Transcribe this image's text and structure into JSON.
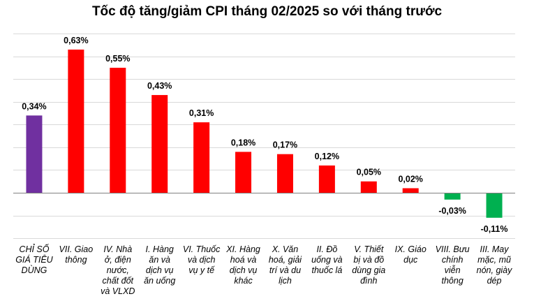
{
  "chart_data": {
    "type": "bar",
    "title": "Tốc độ tăng/giảm CPI tháng 02/2025 so với tháng trước",
    "xlabel": "",
    "ylabel": "",
    "ylim": [
      -0.2,
      0.7
    ],
    "grid": true,
    "categories": [
      "CHỈ SỐ GIÁ TIÊU DÙNG",
      "VII. Giao thông",
      "IV. Nhà ở, điện nước, chất đốt và VLXD",
      "I. Hàng ăn và dịch vụ ăn uống",
      "VI. Thuốc và dịch vụ y tế",
      "XI. Hàng hoá và dịch vụ khác",
      "X. Văn hoá, giải trí và du lịch",
      "II. Đồ uống và thuốc lá",
      "V. Thiết bị và đồ dùng gia đình",
      "IX. Giáo dục",
      "VIII. Bưu chính viễn thông",
      "III. May mặc, mũ nón, giày dép"
    ],
    "category_lines": [
      [
        "CHỈ SỐ",
        "GIÁ TIÊU",
        "DÙNG"
      ],
      [
        "VII. Giao",
        "thông"
      ],
      [
        "IV. Nhà",
        "ở, điện",
        "nước,",
        "chất đốt",
        "và VLXD"
      ],
      [
        "I. Hàng",
        "ăn và",
        "dịch vụ",
        "ăn uống"
      ],
      [
        "VI. Thuốc",
        "và dịch",
        "vụ y tế"
      ],
      [
        "XI. Hàng",
        "hoá và",
        "dịch vụ",
        "khác"
      ],
      [
        "X. Văn",
        "hoá, giải",
        "trí và du",
        "lịch"
      ],
      [
        "II. Đồ",
        "uống và",
        "thuốc lá"
      ],
      [
        "V. Thiết",
        "bị và đồ",
        "dùng gia",
        "đình"
      ],
      [
        "IX. Giáo",
        "dục"
      ],
      [
        "VIII. Bưu",
        "chính",
        "viễn",
        "thông"
      ],
      [
        "III. May",
        "mặc, mũ",
        "nón, giày",
        "dép"
      ]
    ],
    "values": [
      0.34,
      0.63,
      0.55,
      0.43,
      0.31,
      0.18,
      0.17,
      0.12,
      0.05,
      0.02,
      -0.03,
      -0.11
    ],
    "data_labels": [
      "0,34%",
      "0,63%",
      "0,55%",
      "0,43%",
      "0,31%",
      "0,18%",
      "0,17%",
      "0,12%",
      "0,05%",
      "0,02%",
      "-0,03%",
      "-0,11%"
    ],
    "colors": {
      "total": "#7030A0",
      "increase": "#FF0000",
      "decrease": "#00B050",
      "grid": "#D9D9D9",
      "axis": "#808080"
    }
  }
}
